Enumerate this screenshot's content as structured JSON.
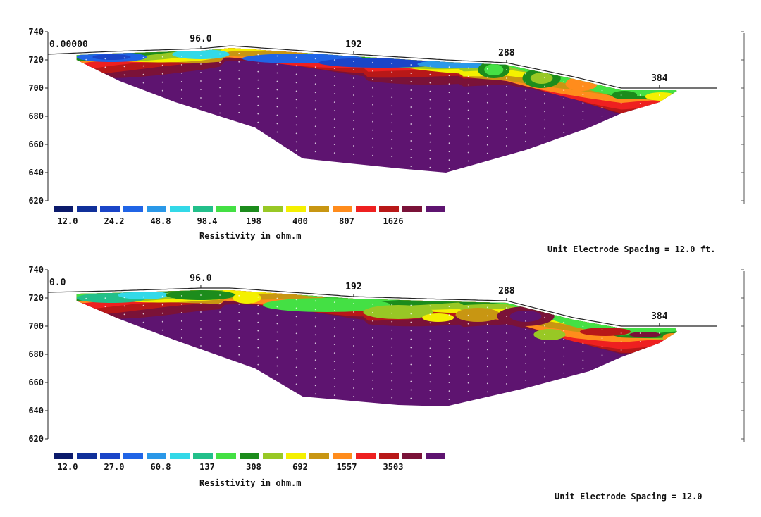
{
  "chart_data": [
    {
      "type": "heatmap",
      "title": "",
      "x_ticks": [
        "0.00000",
        "96.0",
        "192",
        "288",
        "384"
      ],
      "x_tick_values": [
        0,
        96,
        192,
        288,
        384
      ],
      "y_ticks": [
        "740",
        "720",
        "700",
        "680",
        "660",
        "640",
        "620"
      ],
      "y_tick_values": [
        740,
        720,
        700,
        680,
        660,
        640,
        620
      ],
      "xlim": [
        0,
        420
      ],
      "ylim": [
        620,
        740
      ],
      "surface_x": [
        0,
        40,
        96,
        115,
        192,
        250,
        288,
        330,
        360,
        384,
        420
      ],
      "surface_y": [
        724,
        726,
        728,
        730,
        724,
        720,
        718,
        708,
        700,
        700,
        700
      ],
      "base_x": [
        18,
        45,
        80,
        130,
        160,
        220,
        250,
        300,
        340,
        360,
        384,
        395
      ],
      "base_y": [
        720,
        705,
        690,
        672,
        650,
        643,
        640,
        656,
        672,
        682,
        690,
        698
      ],
      "legend_values": [
        "12.0",
        "24.2",
        "48.8",
        "98.4",
        "198",
        "400",
        "807",
        "1626"
      ],
      "legend_label": "Resistivity in ohm.m",
      "colors": [
        "#0b1a6b",
        "#10309a",
        "#1a45c8",
        "#2064e6",
        "#2a98e8",
        "#33d9e8",
        "#22bf8a",
        "#44e044",
        "#1c8c1c",
        "#98c825",
        "#f4f000",
        "#c89612",
        "#ff8c1c",
        "#ee2020",
        "#b81818",
        "#7a1238",
        "#5e1470"
      ],
      "caption": "Unit Electrode Spacing = 12.0 ft."
    },
    {
      "type": "heatmap",
      "title": "",
      "x_ticks": [
        "0.0",
        "96.0",
        "192",
        "288",
        "384"
      ],
      "x_tick_values": [
        0,
        96,
        192,
        288,
        384
      ],
      "y_ticks": [
        "740",
        "720",
        "700",
        "680",
        "660",
        "640",
        "620"
      ],
      "y_tick_values": [
        740,
        720,
        700,
        680,
        660,
        640,
        620
      ],
      "xlim": [
        0,
        420
      ],
      "ylim": [
        620,
        740
      ],
      "surface_x": [
        0,
        40,
        96,
        115,
        192,
        250,
        288,
        330,
        360,
        384,
        420
      ],
      "surface_y": [
        724,
        725,
        727,
        727,
        721,
        719,
        718,
        706,
        700,
        700,
        700
      ],
      "base_x": [
        18,
        45,
        80,
        130,
        160,
        220,
        250,
        300,
        340,
        360,
        384,
        395
      ],
      "base_y": [
        718,
        705,
        690,
        670,
        650,
        644,
        643,
        656,
        668,
        678,
        688,
        696
      ],
      "legend_values": [
        "12.0",
        "27.0",
        "60.8",
        "137",
        "308",
        "692",
        "1557",
        "3503"
      ],
      "legend_label": "Resistivity in ohm.m",
      "colors": [
        "#0b1a6b",
        "#10309a",
        "#1a45c8",
        "#2064e6",
        "#2a98e8",
        "#33d9e8",
        "#22bf8a",
        "#44e044",
        "#1c8c1c",
        "#98c825",
        "#f4f000",
        "#c89612",
        "#ff8c1c",
        "#ee2020",
        "#b81818",
        "#7a1238",
        "#5e1470"
      ],
      "caption": "Unit Electrode Spacing = 12.0"
    }
  ]
}
